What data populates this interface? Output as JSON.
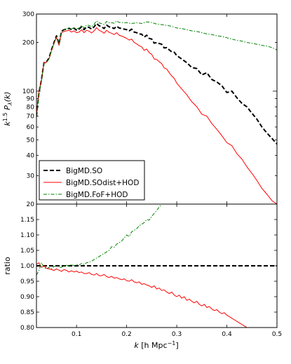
{
  "chart_data": [
    {
      "type": "line",
      "panel": "top",
      "ylabel_base": "k",
      "ylabel_exp": "1.5",
      "ylabel_rest": " P",
      "ylabel_sub": "λ",
      "ylabel_tail": "(k)",
      "yscale": "log",
      "xlim": [
        0.02,
        0.5
      ],
      "ylim": [
        20,
        300
      ],
      "grid": false,
      "legend_position": "lower-left",
      "yticks_major": [
        {
          "value": 20,
          "label": "20"
        },
        {
          "value": 30,
          "label": "30"
        },
        {
          "value": 40,
          "label": "40"
        },
        {
          "value": 50,
          "label": "50"
        },
        {
          "value": 60,
          "label": "60"
        },
        {
          "value": 70,
          "label": "70"
        },
        {
          "value": 80,
          "label": "80"
        },
        {
          "value": 90,
          "label": "90"
        },
        {
          "value": 100,
          "label": "100"
        },
        {
          "value": 200,
          "label": "200"
        },
        {
          "value": 300,
          "label": "300"
        }
      ],
      "series": [
        {
          "name": "BigMD.SO",
          "style": "dashed",
          "color": "#000000",
          "x": [
            0.02,
            0.025,
            0.03,
            0.035,
            0.04,
            0.045,
            0.05,
            0.055,
            0.06,
            0.065,
            0.07,
            0.075,
            0.08,
            0.085,
            0.09,
            0.095,
            0.1,
            0.105,
            0.11,
            0.115,
            0.12,
            0.125,
            0.13,
            0.135,
            0.14,
            0.145,
            0.15,
            0.155,
            0.16,
            0.165,
            0.17,
            0.175,
            0.18,
            0.185,
            0.19,
            0.195,
            0.2,
            0.205,
            0.21,
            0.215,
            0.22,
            0.225,
            0.23,
            0.235,
            0.24,
            0.245,
            0.25,
            0.255,
            0.26,
            0.265,
            0.27,
            0.275,
            0.28,
            0.285,
            0.29,
            0.295,
            0.3,
            0.31,
            0.32,
            0.33,
            0.34,
            0.35,
            0.36,
            0.37,
            0.38,
            0.39,
            0.4,
            0.41,
            0.42,
            0.43,
            0.44,
            0.45,
            0.46,
            0.47,
            0.48,
            0.49,
            0.5
          ],
          "values": [
            70,
            98,
            118,
            150,
            152,
            160,
            180,
            200,
            220,
            195,
            235,
            240,
            242,
            245,
            240,
            245,
            238,
            242,
            250,
            240,
            250,
            248,
            242,
            250,
            262,
            254,
            250,
            244,
            256,
            250,
            248,
            244,
            252,
            246,
            244,
            242,
            240,
            236,
            242,
            232,
            230,
            226,
            225,
            216,
            222,
            212,
            210,
            198,
            200,
            197,
            195,
            185,
            186,
            180,
            175,
            174,
            166,
            158,
            150,
            140,
            138,
            126,
            130,
            118,
            114,
            108,
            98,
            100,
            91,
            84,
            80,
            73,
            67,
            60,
            55,
            51,
            47
          ]
        },
        {
          "name": "BigMD.SOdist+HOD",
          "style": "solid",
          "color": "#ff0000",
          "x": [
            0.02,
            0.025,
            0.03,
            0.035,
            0.04,
            0.045,
            0.05,
            0.055,
            0.06,
            0.065,
            0.07,
            0.075,
            0.08,
            0.085,
            0.09,
            0.095,
            0.1,
            0.105,
            0.11,
            0.115,
            0.12,
            0.125,
            0.13,
            0.135,
            0.14,
            0.145,
            0.15,
            0.155,
            0.16,
            0.165,
            0.17,
            0.175,
            0.18,
            0.185,
            0.19,
            0.195,
            0.2,
            0.205,
            0.21,
            0.215,
            0.22,
            0.225,
            0.23,
            0.235,
            0.24,
            0.245,
            0.25,
            0.255,
            0.26,
            0.265,
            0.27,
            0.275,
            0.28,
            0.285,
            0.29,
            0.295,
            0.3,
            0.31,
            0.32,
            0.33,
            0.34,
            0.35,
            0.36,
            0.37,
            0.38,
            0.39,
            0.4,
            0.41,
            0.42,
            0.43,
            0.44,
            0.45,
            0.46,
            0.47,
            0.48,
            0.49,
            0.5
          ],
          "values": [
            71,
            99,
            118,
            150,
            151,
            158,
            178,
            197,
            215,
            192,
            230,
            234,
            236,
            238,
            232,
            236,
            230,
            232,
            240,
            230,
            238,
            235,
            229,
            236,
            247,
            238,
            234,
            228,
            238,
            231,
            228,
            224,
            230,
            222,
            219,
            216,
            212,
            207,
            210,
            200,
            196,
            191,
            188,
            179,
            182,
            173,
            169,
            158,
            157,
            152,
            148,
            139,
            137,
            130,
            124,
            120,
            112,
            103,
            95,
            86,
            80,
            72,
            70,
            63,
            58,
            53,
            48,
            46,
            41,
            38,
            34,
            31,
            28,
            25,
            23,
            21,
            20
          ]
        },
        {
          "name": "BigMD.FoF+HOD",
          "style": "dashdot",
          "color": "#008000",
          "x": [
            0.02,
            0.025,
            0.03,
            0.035,
            0.04,
            0.045,
            0.05,
            0.055,
            0.06,
            0.065,
            0.07,
            0.075,
            0.08,
            0.085,
            0.09,
            0.095,
            0.1,
            0.105,
            0.11,
            0.115,
            0.12,
            0.125,
            0.13,
            0.135,
            0.14,
            0.145,
            0.15,
            0.155,
            0.16,
            0.165,
            0.17,
            0.175,
            0.18,
            0.185,
            0.19,
            0.195,
            0.2,
            0.21,
            0.22,
            0.23,
            0.24,
            0.25,
            0.26,
            0.27,
            0.28,
            0.29,
            0.3,
            0.31,
            0.32,
            0.33,
            0.34,
            0.35,
            0.36,
            0.37,
            0.38,
            0.39,
            0.4,
            0.41,
            0.42,
            0.43,
            0.44,
            0.45,
            0.46,
            0.47,
            0.48,
            0.49,
            0.5
          ],
          "values": [
            68,
            96,
            116,
            148,
            150,
            158,
            178,
            198,
            218,
            194,
            234,
            240,
            243,
            246,
            242,
            248,
            242,
            246,
            255,
            246,
            256,
            255,
            250,
            259,
            272,
            264,
            262,
            258,
            270,
            265,
            265,
            263,
            272,
            266,
            266,
            265,
            265,
            262,
            265,
            262,
            268,
            266,
            260,
            258,
            255,
            252,
            246,
            244,
            240,
            236,
            234,
            230,
            226,
            224,
            220,
            218,
            214,
            210,
            206,
            204,
            200,
            198,
            195,
            192,
            190,
            186,
            180
          ]
        }
      ]
    },
    {
      "type": "line",
      "panel": "bottom",
      "xlabel_k": "k",
      "xlabel_units": "[h Mpc",
      "xlabel_exp": "−1",
      "xlabel_close": "]",
      "ylabel": "ratio",
      "xlim": [
        0.02,
        0.5
      ],
      "ylim": [
        0.8,
        1.2
      ],
      "grid": false,
      "xticks": [
        {
          "value": 0.1,
          "label": "0.1"
        },
        {
          "value": 0.2,
          "label": "0.2"
        },
        {
          "value": 0.3,
          "label": "0.3"
        },
        {
          "value": 0.4,
          "label": "0.4"
        },
        {
          "value": 0.5,
          "label": "0.5"
        }
      ],
      "yticks": [
        {
          "value": 0.8,
          "label": "0.80"
        },
        {
          "value": 0.85,
          "label": "0.85"
        },
        {
          "value": 0.9,
          "label": "0.90"
        },
        {
          "value": 0.95,
          "label": "0.95"
        },
        {
          "value": 1.0,
          "label": "1.00"
        },
        {
          "value": 1.05,
          "label": "1.05"
        },
        {
          "value": 1.1,
          "label": "1.10"
        },
        {
          "value": 1.15,
          "label": "1.15"
        }
      ],
      "series": [
        {
          "name": "BigMD.SO",
          "style": "dashed",
          "color": "#000000",
          "x": [
            0.02,
            0.5
          ],
          "values": [
            1.0,
            1.0
          ]
        },
        {
          "name": "BigMD.SOdist+HOD",
          "style": "solid",
          "color": "#ff0000",
          "x": [
            0.02,
            0.025,
            0.03,
            0.035,
            0.04,
            0.045,
            0.05,
            0.055,
            0.06,
            0.065,
            0.07,
            0.075,
            0.08,
            0.085,
            0.09,
            0.095,
            0.1,
            0.105,
            0.11,
            0.115,
            0.12,
            0.125,
            0.13,
            0.135,
            0.14,
            0.145,
            0.15,
            0.155,
            0.16,
            0.165,
            0.17,
            0.175,
            0.18,
            0.185,
            0.19,
            0.195,
            0.2,
            0.205,
            0.21,
            0.215,
            0.22,
            0.225,
            0.23,
            0.235,
            0.24,
            0.245,
            0.25,
            0.255,
            0.26,
            0.265,
            0.27,
            0.275,
            0.28,
            0.285,
            0.29,
            0.295,
            0.3,
            0.305,
            0.31,
            0.315,
            0.32,
            0.325,
            0.33,
            0.335,
            0.34,
            0.345,
            0.35,
            0.355,
            0.36,
            0.365,
            0.37,
            0.375,
            0.38,
            0.385,
            0.39,
            0.395,
            0.4,
            0.405,
            0.41,
            0.415,
            0.42,
            0.425,
            0.43,
            0.435,
            0.44
          ],
          "values": [
            1.005,
            1.01,
            0.995,
            1.0,
            0.992,
            0.99,
            0.988,
            0.985,
            0.99,
            0.986,
            0.982,
            0.988,
            0.985,
            0.98,
            0.984,
            0.98,
            0.983,
            0.978,
            0.98,
            0.975,
            0.975,
            0.978,
            0.972,
            0.97,
            0.975,
            0.968,
            0.968,
            0.972,
            0.965,
            0.962,
            0.966,
            0.96,
            0.962,
            0.958,
            0.955,
            0.958,
            0.952,
            0.95,
            0.955,
            0.948,
            0.945,
            0.948,
            0.94,
            0.942,
            0.938,
            0.935,
            0.93,
            0.935,
            0.925,
            0.928,
            0.92,
            0.922,
            0.915,
            0.91,
            0.915,
            0.905,
            0.9,
            0.905,
            0.895,
            0.9,
            0.888,
            0.892,
            0.885,
            0.88,
            0.885,
            0.875,
            0.87,
            0.875,
            0.865,
            0.868,
            0.86,
            0.855,
            0.858,
            0.85,
            0.845,
            0.848,
            0.84,
            0.835,
            0.83,
            0.825,
            0.82,
            0.815,
            0.81,
            0.805,
            0.8
          ]
        },
        {
          "name": "BigMD.FoF+HOD",
          "style": "dashdot",
          "color": "#008000",
          "x": [
            0.02,
            0.025,
            0.03,
            0.035,
            0.04,
            0.045,
            0.05,
            0.055,
            0.06,
            0.065,
            0.07,
            0.075,
            0.08,
            0.085,
            0.09,
            0.095,
            0.1,
            0.105,
            0.11,
            0.115,
            0.12,
            0.125,
            0.13,
            0.135,
            0.14,
            0.145,
            0.15,
            0.155,
            0.16,
            0.165,
            0.17,
            0.175,
            0.18,
            0.185,
            0.19,
            0.195,
            0.2,
            0.205,
            0.21,
            0.215,
            0.22,
            0.225,
            0.23,
            0.235,
            0.24,
            0.245,
            0.25,
            0.255,
            0.26,
            0.265,
            0.27
          ],
          "values": [
            0.97,
            0.985,
            1.01,
            0.995,
            0.99,
            0.995,
            0.99,
            0.998,
            1.0,
            0.996,
            0.995,
            1.0,
            1.002,
            0.998,
            1.005,
            1.0,
            1.005,
            1.002,
            1.008,
            1.004,
            1.01,
            1.012,
            1.015,
            1.02,
            1.025,
            1.03,
            1.035,
            1.04,
            1.045,
            1.05,
            1.062,
            1.06,
            1.07,
            1.075,
            1.08,
            1.09,
            1.1,
            1.095,
            1.11,
            1.115,
            1.12,
            1.13,
            1.135,
            1.14,
            1.15,
            1.148,
            1.16,
            1.17,
            1.18,
            1.19,
            1.2
          ]
        }
      ]
    }
  ]
}
